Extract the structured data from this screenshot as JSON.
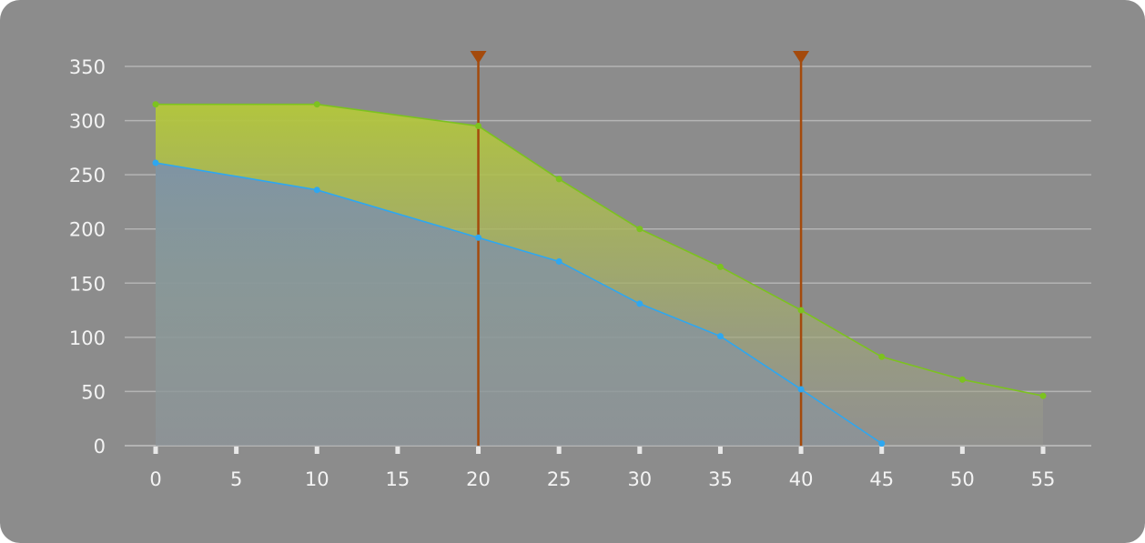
{
  "chart_data": {
    "type": "area",
    "x": [
      0,
      10,
      20,
      25,
      30,
      35,
      40,
      45,
      50,
      55
    ],
    "series": [
      {
        "values": [
          315,
          315,
          295,
          246,
          200,
          165,
          125,
          82,
          61,
          46
        ],
        "color": "#7cc21f"
      },
      {
        "values": [
          261,
          236,
          192,
          170,
          131,
          101,
          52,
          2,
          null,
          null
        ],
        "color": "#2ea7f0"
      }
    ],
    "markers": [
      {
        "x": 20,
        "color": "#a44a0c"
      },
      {
        "x": 40,
        "color": "#a44a0c"
      }
    ],
    "xticks": [
      "0",
      "5",
      "10",
      "15",
      "20",
      "25",
      "30",
      "35",
      "40",
      "45",
      "50",
      "55"
    ],
    "yticks": [
      "0",
      "50",
      "100",
      "150",
      "200",
      "250",
      "300",
      "350"
    ],
    "xlim": [
      0,
      55
    ],
    "ylim": [
      0,
      350
    ],
    "grid": true,
    "background": "#8c8c8c",
    "gridline_color": "#b4b4b4"
  }
}
